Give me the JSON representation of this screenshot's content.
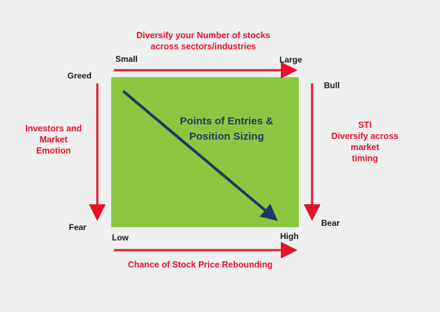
{
  "colors": {
    "background": "#eef0ef",
    "box": "#8dc640",
    "red_arrows": "#e8112d",
    "diagonal_arrow": "#1f3864"
  },
  "top": {
    "title_line1": "Diversify your Number of stocks",
    "title_line2": "across sectors/industries",
    "left_label": "Small",
    "right_label": "Large"
  },
  "left": {
    "top_label": "Greed",
    "bottom_label": "Fear",
    "title_line1": "Investors and",
    "title_line2": "Market",
    "title_line3": "Emotion"
  },
  "right": {
    "top_label": "Bull",
    "bottom_label": "Bear",
    "title_line1": "STI",
    "title_line2": "Diversify across market",
    "title_line3": "timing"
  },
  "bottom": {
    "left_label": "Low",
    "right_label": "High",
    "title": "Chance of Stock Price Rebounding"
  },
  "center": {
    "line1": "Points of Entries &",
    "line2": "Position Sizing"
  }
}
